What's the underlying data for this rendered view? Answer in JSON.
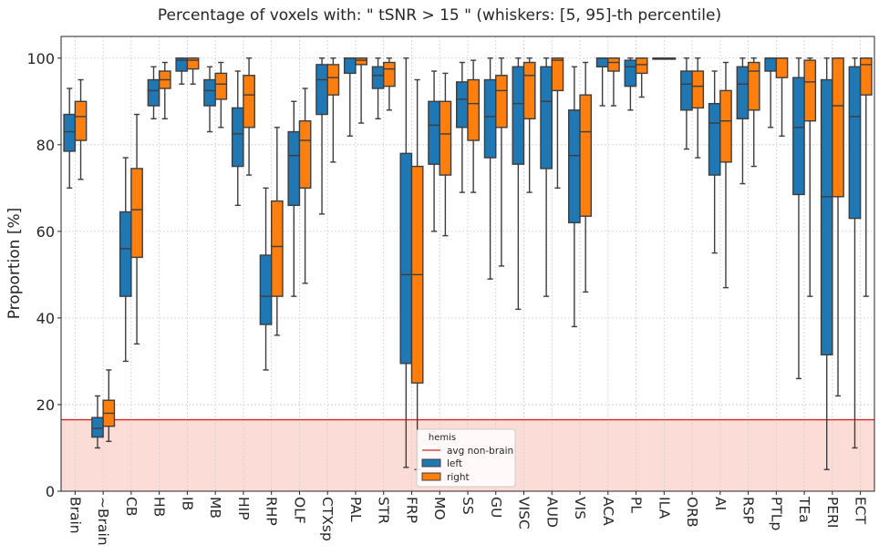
{
  "chart_data": {
    "type": "box",
    "title": "Percentage of voxels with:  \" tSNR  >  15 \"  (whiskers: [5, 95]-th percentile)",
    "ylabel": "Proportion [%]",
    "xlabel": "",
    "ylim": [
      0,
      105
    ],
    "yticks": [
      0,
      20,
      40,
      60,
      80,
      100
    ],
    "grid": true,
    "threshold": {
      "label": "avg non-brain",
      "value": 16.5,
      "color": "#d62728",
      "fill": "#fcdcd6"
    },
    "legend": {
      "title": "hemis",
      "placement": "lower-center"
    },
    "colors": {
      "left": "#1f77b4",
      "right": "#ff7f0e"
    },
    "categories": [
      "Brain",
      "~Brain",
      "CB",
      "HB",
      "IB",
      "MB",
      "HIP",
      "RHP",
      "OLF",
      "CTXsp",
      "PAL",
      "STR",
      "FRP",
      "MO",
      "SS",
      "GU",
      "VISC",
      "AUD",
      "VIS",
      "ACA",
      "PL",
      "ILA",
      "ORB",
      "AI",
      "RSP",
      "PTLp",
      "TEa",
      "PERI",
      "ECT"
    ],
    "series": [
      {
        "name": "left",
        "boxes": [
          [
            70,
            78.5,
            83,
            87,
            93
          ],
          [
            10,
            12.5,
            14.5,
            17,
            22
          ],
          [
            30,
            45,
            56,
            64.5,
            77
          ],
          [
            86,
            89,
            92.5,
            95,
            98
          ],
          [
            94,
            97,
            99.5,
            100,
            100
          ],
          [
            83,
            89,
            92.5,
            95,
            98
          ],
          [
            66,
            75,
            82.5,
            88.5,
            97
          ],
          [
            28,
            38.5,
            45,
            54.5,
            70
          ],
          [
            45,
            66,
            77.5,
            83,
            90
          ],
          [
            64,
            87,
            95,
            98.5,
            100
          ],
          [
            82,
            96.5,
            100,
            100,
            100
          ],
          [
            86,
            93,
            96,
            98,
            100
          ],
          [
            5.5,
            29.5,
            50,
            78,
            100
          ],
          [
            60,
            75.5,
            84.5,
            90,
            97
          ],
          [
            69,
            84,
            90.5,
            94.5,
            99
          ],
          [
            49,
            77,
            86.5,
            95,
            100
          ],
          [
            42,
            75.5,
            89.5,
            98,
            100
          ],
          [
            45,
            74.5,
            90,
            98,
            100
          ],
          [
            38,
            62,
            77.5,
            88,
            98
          ],
          [
            89,
            98,
            100,
            100,
            100
          ],
          [
            88,
            93.5,
            98,
            99.5,
            100
          ],
          [
            100,
            100,
            100,
            100,
            100
          ],
          [
            79,
            88,
            94,
            97,
            100
          ],
          [
            55,
            73,
            85,
            89.5,
            97
          ],
          [
            71,
            86,
            94,
            98,
            100
          ],
          [
            84,
            97,
            100,
            100,
            100
          ],
          [
            26,
            68.5,
            84,
            95.5,
            100
          ],
          [
            5,
            31.5,
            68,
            95,
            100
          ],
          [
            10,
            63,
            86.5,
            98,
            100
          ]
        ]
      },
      {
        "name": "right",
        "boxes": [
          [
            72,
            81,
            86.5,
            90,
            95
          ],
          [
            11.5,
            15,
            18,
            21,
            28
          ],
          [
            34,
            54,
            65,
            74.5,
            87
          ],
          [
            86,
            93,
            95,
            97,
            99
          ],
          [
            94,
            97.5,
            99.5,
            100,
            100
          ],
          [
            84,
            90.5,
            94,
            96.5,
            99
          ],
          [
            73,
            84,
            91.5,
            96,
            100
          ],
          [
            36,
            45,
            56.5,
            67,
            84
          ],
          [
            48,
            70,
            81,
            85.5,
            93
          ],
          [
            76,
            91.5,
            95.5,
            98.5,
            100
          ],
          [
            85,
            98.5,
            99.5,
            100,
            100
          ],
          [
            88,
            93.5,
            97.5,
            99,
            100
          ],
          [
            5,
            25,
            50,
            75,
            95
          ],
          [
            59,
            73,
            82.5,
            90,
            96.5
          ],
          [
            69,
            81,
            89.5,
            95,
            99.5
          ],
          [
            52,
            84,
            92.5,
            96,
            100
          ],
          [
            69,
            86,
            96,
            99,
            100
          ],
          [
            70,
            92.5,
            99.5,
            100,
            100
          ],
          [
            46,
            63.5,
            83,
            91.5,
            99
          ],
          [
            89,
            97,
            99,
            100,
            100
          ],
          [
            91,
            96.5,
            98.5,
            100,
            100
          ],
          [
            100,
            100,
            100,
            100,
            100
          ],
          [
            77,
            88.5,
            93.5,
            97,
            100
          ],
          [
            47,
            76,
            85.5,
            92.5,
            99
          ],
          [
            75,
            88,
            97,
            99,
            100
          ],
          [
            82,
            95.5,
            100,
            100,
            100
          ],
          [
            45,
            85.5,
            94.5,
            99.5,
            100
          ],
          [
            22,
            68,
            89,
            100,
            100
          ],
          [
            45,
            91.5,
            98.5,
            100,
            100
          ]
        ]
      }
    ]
  }
}
